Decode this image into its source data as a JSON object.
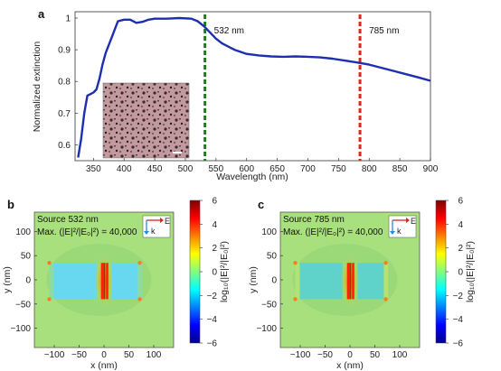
{
  "chart_data": [
    {
      "panel_label": "a",
      "type": "line",
      "xlabel": "Wavelength (nm)",
      "ylabel": "Normalized extinction",
      "xlim": [
        320,
        900
      ],
      "ylim": [
        0.55,
        1.02
      ],
      "x_ticks": [
        "350",
        "400",
        "450",
        "500",
        "550",
        "600",
        "650",
        "700",
        "750",
        "800",
        "850",
        "900"
      ],
      "y_ticks": [
        "0.6",
        "0.7",
        "0.8",
        "0.9",
        "1"
      ],
      "series": [
        {
          "color": "#1c2fb0",
          "x": [
            325,
            330,
            335,
            340,
            345,
            350,
            355,
            360,
            365,
            370,
            380,
            390,
            400,
            410,
            420,
            430,
            440,
            450,
            470,
            490,
            510,
            520,
            530,
            540,
            550,
            560,
            580,
            600,
            620,
            640,
            660,
            680,
            700,
            720,
            740,
            760,
            780,
            800,
            820,
            840,
            860,
            880,
            900
          ],
          "y": [
            0.56,
            0.62,
            0.7,
            0.755,
            0.76,
            0.765,
            0.775,
            0.81,
            0.855,
            0.89,
            0.94,
            0.99,
            0.995,
            0.995,
            0.985,
            0.988,
            0.995,
            0.998,
            0.998,
            1.0,
            0.998,
            0.99,
            0.975,
            0.955,
            0.935,
            0.92,
            0.9,
            0.887,
            0.882,
            0.879,
            0.878,
            0.879,
            0.878,
            0.876,
            0.872,
            0.866,
            0.86,
            0.853,
            0.843,
            0.833,
            0.823,
            0.813,
            0.802
          ]
        }
      ],
      "markers": [
        {
          "x": 532,
          "label": "532 nm",
          "color": "#1e7a1e"
        },
        {
          "x": 785,
          "label": "785 nm",
          "color": "#d02a1a"
        }
      ]
    },
    {
      "panel_label": "b",
      "type": "heatmap",
      "annotations": [
        "Source 532 nm",
        "Max. (|E|²/|E₀|²) = 40,000"
      ],
      "xlabel": "x (nm)",
      "ylabel": "y (nm)",
      "x_ticks": [
        "−100",
        "−50",
        "0",
        "50",
        "100"
      ],
      "y_ticks": [
        "100",
        "50",
        "0",
        "−50",
        "−100"
      ],
      "colorbar_label": "log₁₀(|E|²/|E₀|²)",
      "colorbar_ticks": [
        "6",
        "4",
        "2",
        "0",
        "−2",
        "−4",
        "−6"
      ],
      "colorbar_range": [
        -6,
        6
      ],
      "polarization": {
        "E": "E",
        "k": "k"
      }
    },
    {
      "panel_label": "c",
      "type": "heatmap",
      "annotations": [
        "Source 785 nm",
        "Max. (|E|²/|E₀|²) = 40,000"
      ],
      "xlabel": "x (nm)",
      "ylabel": "y (nm)",
      "x_ticks": [
        "−100",
        "−50",
        "0",
        "50",
        "100"
      ],
      "y_ticks": [
        "100",
        "50",
        "0",
        "−50",
        "−100"
      ],
      "colorbar_label": "log₁₀(|E|²/|E₀|²)",
      "colorbar_ticks": [
        "6",
        "4",
        "2",
        "0",
        "−2",
        "−4",
        "−6"
      ],
      "colorbar_range": [
        -6,
        6
      ],
      "polarization": {
        "E": "E",
        "k": "k"
      }
    }
  ]
}
